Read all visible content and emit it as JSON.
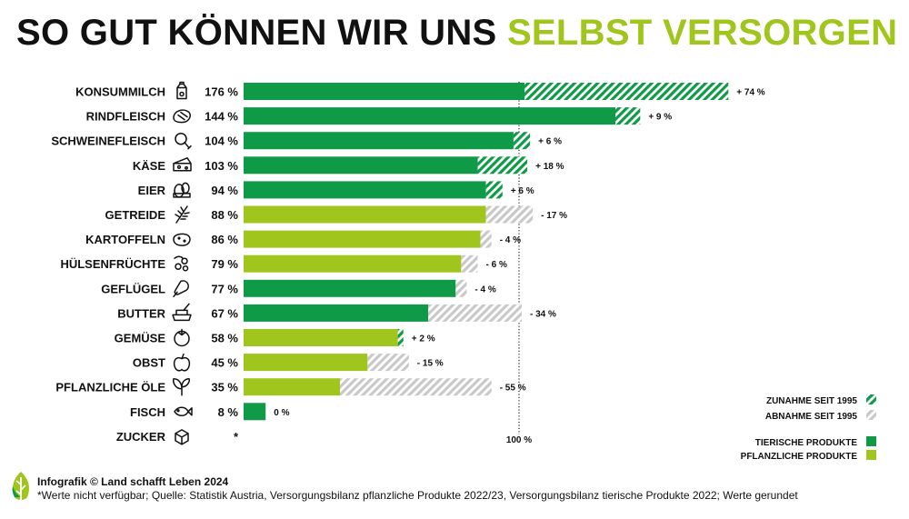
{
  "title": {
    "part1": "SO GUT KÖNNEN WIR UNS ",
    "part2": "SELBST VERSORGEN"
  },
  "colors": {
    "tierisch": "#0e9a47",
    "pflanzlich": "#a0c51c",
    "hatch_gray": "#c9c9c9"
  },
  "chart_data": {
    "type": "bar",
    "orientation": "horizontal",
    "reference_label": "100 %",
    "reference_value": 100,
    "xlim": [
      0,
      250
    ],
    "categories": [
      "KONSUMMILCH",
      "RINDFLEISCH",
      "SCHWEINEFLEISCH",
      "KÄSE",
      "EIER",
      "GETREIDE",
      "KARTOFFELN",
      "HÜLSENFRÜCHTE",
      "GEFLÜGEL",
      "BUTTER",
      "GEMÜSE",
      "OBST",
      "PFLANZLICHE ÖLE",
      "FISCH",
      "ZUCKER"
    ],
    "rows": [
      {
        "label": "KONSUMMILCH",
        "icon": "milk-carton-icon",
        "value": 176,
        "value_label": "176 %",
        "change": 74,
        "change_label": "+ 74 %",
        "group": "tierisch"
      },
      {
        "label": "RINDFLEISCH",
        "icon": "steak-icon",
        "value": 144,
        "value_label": "144 %",
        "change": 9,
        "change_label": "+ 9 %",
        "group": "tierisch"
      },
      {
        "label": "SCHWEINEFLEISCH",
        "icon": "ham-icon",
        "value": 104,
        "value_label": "104 %",
        "change": 6,
        "change_label": "+ 6 %",
        "group": "tierisch"
      },
      {
        "label": "KÄSE",
        "icon": "cheese-icon",
        "value": 103,
        "value_label": "103 %",
        "change": 18,
        "change_label": "+ 18 %",
        "group": "tierisch"
      },
      {
        "label": "EIER",
        "icon": "eggs-icon",
        "value": 94,
        "value_label": "94 %",
        "change": 6,
        "change_label": "+ 6 %",
        "group": "tierisch"
      },
      {
        "label": "GETREIDE",
        "icon": "wheat-icon",
        "value": 88,
        "value_label": "88 %",
        "change": -17,
        "change_label": "- 17 %",
        "group": "pflanzlich"
      },
      {
        "label": "KARTOFFELN",
        "icon": "potato-icon",
        "value": 86,
        "value_label": "86 %",
        "change": -4,
        "change_label": "- 4 %",
        "group": "pflanzlich"
      },
      {
        "label": "HÜLSENFRÜCHTE",
        "icon": "peas-icon",
        "value": 79,
        "value_label": "79 %",
        "change": -6,
        "change_label": "- 6 %",
        "group": "pflanzlich"
      },
      {
        "label": "GEFLÜGEL",
        "icon": "chicken-leg-icon",
        "value": 77,
        "value_label": "77 %",
        "change": -4,
        "change_label": "- 4 %",
        "group": "tierisch"
      },
      {
        "label": "BUTTER",
        "icon": "butter-icon",
        "value": 67,
        "value_label": "67 %",
        "change": -34,
        "change_label": "- 34 %",
        "group": "tierisch"
      },
      {
        "label": "GEMÜSE",
        "icon": "tomato-icon",
        "value": 58,
        "value_label": "58 %",
        "change": 2,
        "change_label": "+ 2 %",
        "group": "pflanzlich"
      },
      {
        "label": "OBST",
        "icon": "apple-icon",
        "value": 45,
        "value_label": "45 %",
        "change": -15,
        "change_label": "- 15 %",
        "group": "pflanzlich"
      },
      {
        "label": "PFLANZLICHE ÖLE",
        "icon": "leaf-drop-icon",
        "value": 35,
        "value_label": "35 %",
        "change": -55,
        "change_label": "- 55 %",
        "group": "pflanzlich"
      },
      {
        "label": "FISCH",
        "icon": "fish-icon",
        "value": 8,
        "value_label": "8 %",
        "change": 0,
        "change_label": "0 %",
        "group": "tierisch"
      },
      {
        "label": "ZUCKER",
        "icon": "sugar-cube-icon",
        "value": null,
        "value_label": "*",
        "change": null,
        "change_label": "",
        "group": "pflanzlich"
      }
    ],
    "legend": [
      {
        "label": "ZUNAHME SEIT 1995",
        "style": "hatch-green"
      },
      {
        "label": "ABNAHME SEIT 1995",
        "style": "hatch-gray"
      },
      {
        "label": "TIERISCHE PRODUKTE",
        "style": "solid-tierisch"
      },
      {
        "label": "PFLANZLICHE PRODUKTE",
        "style": "solid-pflanzlich"
      }
    ],
    "legend_position": "bottom-right"
  },
  "footer": {
    "credit": "Infografik © Land schafft Leben 2024",
    "note": "*Werte nicht verfügbar; Quelle: Statistik Austria, Versorgungsbilanz pflanzliche Produkte 2022/23, Versorgungsbilanz tierische Produkte 2022; Werte gerundet"
  }
}
